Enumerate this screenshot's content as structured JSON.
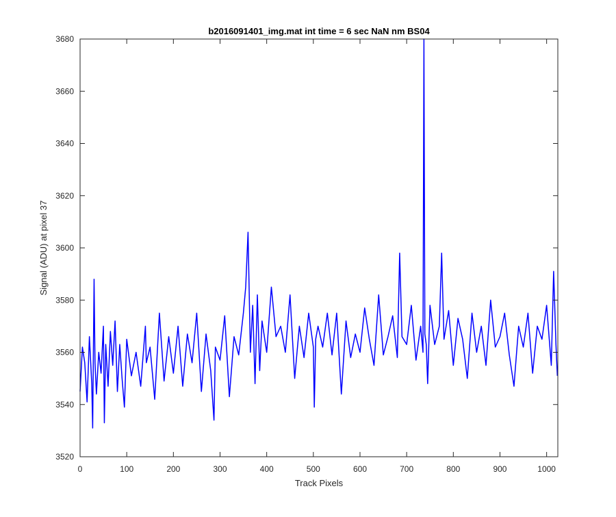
{
  "chart_data": {
    "type": "line",
    "title": "b2016091401_img.mat int time = 6 sec  NaN nm BS04",
    "xlabel": "Track Pixels",
    "ylabel": "Signal (ADU) at pixel 37",
    "xlim": [
      0,
      1024
    ],
    "ylim": [
      3520,
      3680
    ],
    "xticks": [
      0,
      100,
      200,
      300,
      400,
      500,
      600,
      700,
      800,
      900,
      1000
    ],
    "yticks": [
      3520,
      3540,
      3560,
      3580,
      3600,
      3620,
      3640,
      3660,
      3680
    ],
    "grid": false,
    "legend": "none",
    "series": [
      {
        "color": "#0000ff",
        "x": [
          0,
          5,
          10,
          15,
          20,
          25,
          27,
          30,
          32,
          35,
          40,
          45,
          50,
          52,
          55,
          60,
          65,
          70,
          75,
          80,
          85,
          90,
          95,
          100,
          110,
          120,
          130,
          140,
          142,
          150,
          160,
          170,
          180,
          190,
          200,
          210,
          220,
          230,
          240,
          250,
          260,
          270,
          280,
          287,
          290,
          300,
          310,
          320,
          330,
          340,
          350,
          355,
          360,
          365,
          370,
          375,
          380,
          385,
          390,
          400,
          410,
          420,
          430,
          440,
          450,
          460,
          470,
          480,
          490,
          500,
          502,
          505,
          510,
          520,
          530,
          540,
          550,
          560,
          570,
          580,
          590,
          600,
          610,
          620,
          630,
          640,
          650,
          660,
          670,
          680,
          685,
          690,
          700,
          710,
          720,
          730,
          735,
          737,
          739,
          742,
          745,
          750,
          760,
          770,
          775,
          780,
          790,
          800,
          810,
          820,
          830,
          840,
          850,
          860,
          870,
          880,
          890,
          900,
          910,
          920,
          930,
          940,
          950,
          960,
          970,
          980,
          990,
          1000,
          1010,
          1015,
          1020,
          1023
        ],
        "values": [
          3545,
          3562,
          3556,
          3541,
          3566,
          3548,
          3531,
          3588,
          3556,
          3544,
          3560,
          3552,
          3570,
          3533,
          3563,
          3547,
          3568,
          3555,
          3572,
          3545,
          3563,
          3550,
          3539,
          3565,
          3551,
          3560,
          3547,
          3570,
          3556,
          3562,
          3542,
          3575,
          3549,
          3566,
          3552,
          3570,
          3547,
          3567,
          3556,
          3575,
          3545,
          3567,
          3553,
          3534,
          3562,
          3557,
          3574,
          3543,
          3566,
          3559,
          3575,
          3585,
          3606,
          3560,
          3578,
          3548,
          3582,
          3553,
          3572,
          3560,
          3585,
          3566,
          3570,
          3560,
          3582,
          3550,
          3570,
          3558,
          3575,
          3562,
          3539,
          3565,
          3570,
          3562,
          3575,
          3559,
          3575,
          3544,
          3572,
          3558,
          3567,
          3560,
          3577,
          3565,
          3555,
          3582,
          3559,
          3566,
          3574,
          3558,
          3598,
          3566,
          3563,
          3578,
          3557,
          3570,
          3560,
          3680,
          3567,
          3563,
          3548,
          3578,
          3563,
          3570,
          3598,
          3565,
          3576,
          3555,
          3573,
          3565,
          3550,
          3575,
          3560,
          3570,
          3555,
          3580,
          3562,
          3566,
          3575,
          3559,
          3547,
          3570,
          3562,
          3575,
          3552,
          3570,
          3565,
          3578,
          3555,
          3591,
          3563,
          3551
        ]
      }
    ]
  }
}
